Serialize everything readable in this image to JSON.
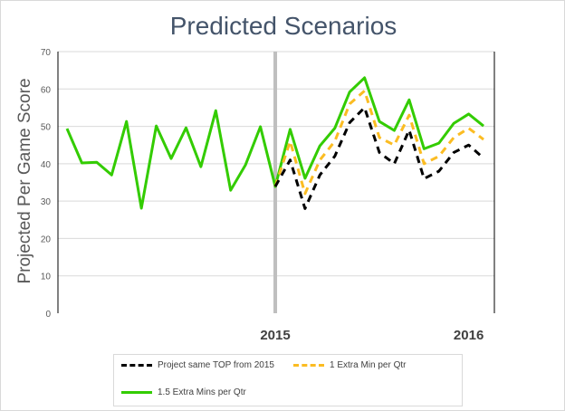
{
  "chart_data": {
    "type": "line",
    "title": "Predicted Scenarios",
    "xlabel": "",
    "ylabel": "Projected Per Game Score",
    "ylim": [
      0,
      70
    ],
    "yticks": [
      0,
      10,
      20,
      30,
      40,
      50,
      60,
      70
    ],
    "xtick_labels": [
      {
        "index": 14,
        "label": "2015"
      },
      {
        "index": 27,
        "label": "2016"
      }
    ],
    "grid": true,
    "legend": "bottom",
    "divider_index": 14,
    "series": [
      {
        "name": "1.5 Extra Mins per Qtr",
        "color": "#33cc00",
        "style": "solid",
        "start": 0,
        "values": [
          49.4,
          40.2,
          40.4,
          37,
          51.3,
          28.1,
          50.1,
          41.4,
          49.6,
          39.2,
          54.2,
          32.9,
          39.7,
          49.9,
          33.9,
          49.2,
          36.1,
          44.8,
          49.5,
          59.2,
          63,
          51.3,
          48.9,
          57.1,
          44,
          45.5,
          50.8,
          53.3,
          50.1
        ]
      },
      {
        "name": "1 Extra Min per Qtr",
        "color": "#fbbc22",
        "style": "dashed",
        "start": 14,
        "values": [
          33.9,
          46,
          32,
          41,
          46,
          56,
          59.5,
          47,
          45,
          53,
          40,
          42,
          47,
          49.5,
          46.5
        ]
      },
      {
        "name": "Project same TOP from 2015",
        "color": "#000000",
        "style": "dashed",
        "start": 14,
        "values": [
          33.9,
          41,
          28,
          37,
          42,
          51,
          55,
          43,
          40,
          49,
          36,
          38,
          43,
          45,
          41.5
        ]
      }
    ]
  }
}
